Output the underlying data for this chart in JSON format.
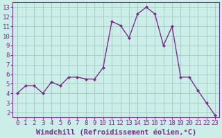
{
  "x": [
    0,
    1,
    2,
    3,
    4,
    5,
    6,
    7,
    8,
    9,
    10,
    11,
    12,
    13,
    14,
    15,
    16,
    17,
    18,
    19,
    20,
    21,
    22,
    23
  ],
  "y": [
    4.0,
    4.8,
    4.8,
    4.0,
    5.2,
    4.8,
    5.7,
    5.7,
    5.5,
    5.5,
    6.7,
    11.5,
    11.1,
    9.8,
    12.3,
    13.0,
    12.3,
    9.0,
    11.0,
    5.7,
    5.7,
    4.3,
    3.0,
    1.7
  ],
  "line_color": "#7b2d8b",
  "marker": "D",
  "marker_size": 2.0,
  "bg_color": "#cceee8",
  "grid_color": "#aacccc",
  "xlabel": "Windchill (Refroidissement éolien,°C)",
  "ylim": [
    1.5,
    13.5
  ],
  "xlim": [
    -0.5,
    23.5
  ],
  "yticks": [
    2,
    3,
    4,
    5,
    6,
    7,
    8,
    9,
    10,
    11,
    12,
    13
  ],
  "xticks": [
    0,
    1,
    2,
    3,
    4,
    5,
    6,
    7,
    8,
    9,
    10,
    11,
    12,
    13,
    14,
    15,
    16,
    17,
    18,
    19,
    20,
    21,
    22,
    23
  ],
  "tick_label_fontsize": 6.5,
  "xlabel_fontsize": 7.5,
  "spine_color": "#7b2d8b",
  "linewidth": 1.0
}
